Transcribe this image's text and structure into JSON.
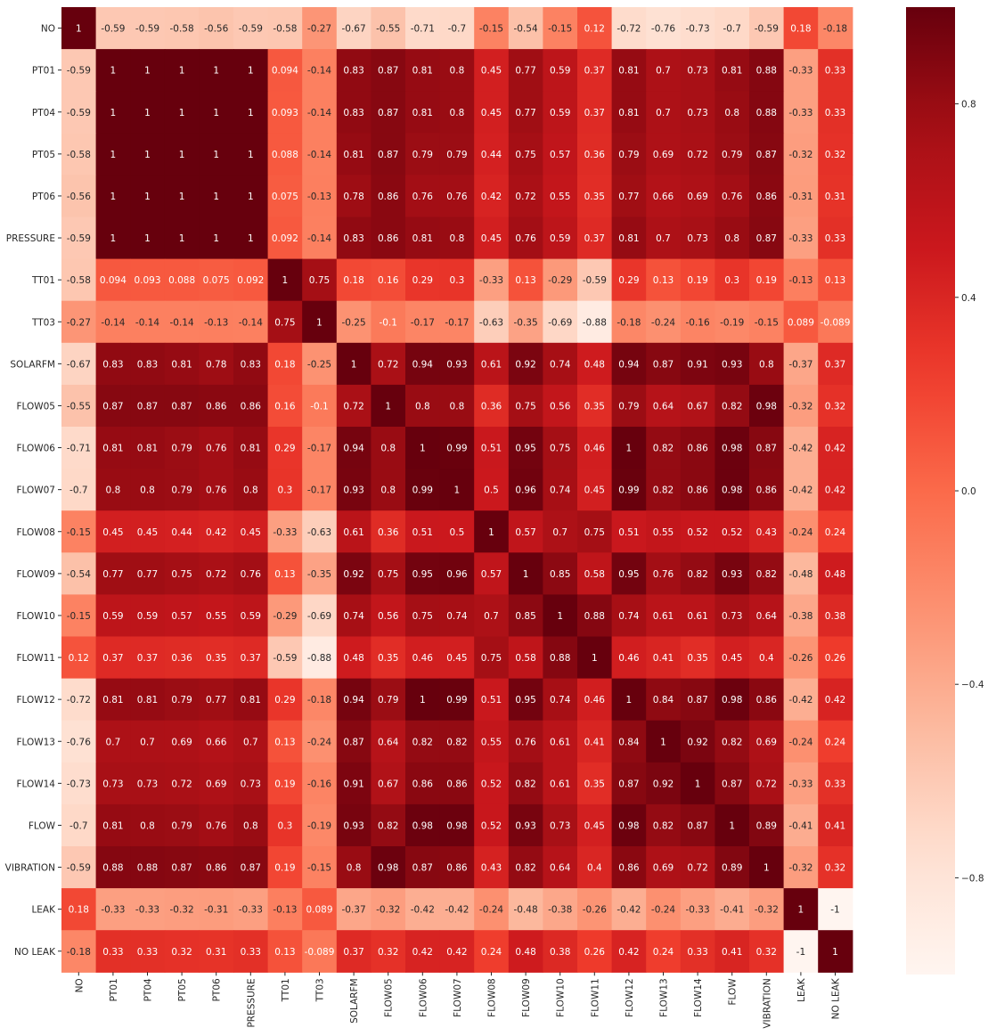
{
  "chart_data": {
    "type": "heatmap",
    "colormap": "Reds",
    "colors": {
      "low": "#fff5f0",
      "mid": "#f6553c",
      "high": "#67000d"
    },
    "vmin": -1,
    "vmax": 1,
    "labels": [
      "NO",
      "PT01",
      "PT04",
      "PT05",
      "PT06",
      "PRESSURE",
      "TT01",
      "TT03",
      "SOLARFM",
      "FLOW05",
      "FLOW06",
      "FLOW07",
      "FLOW08",
      "FLOW09",
      "FLOW10",
      "FLOW11",
      "FLOW12",
      "FLOW13",
      "FLOW14",
      "FLOW",
      "VIBRATION",
      "LEAK",
      "NO LEAK"
    ],
    "colorbar_ticks": [
      "0.8",
      "0.4",
      "0.0",
      "−0.4",
      "−0.8"
    ],
    "colorbar_tick_values": [
      0.8,
      0.4,
      0.0,
      -0.4,
      -0.8
    ],
    "matrix": [
      [
        "1",
        "-0.59",
        "-0.59",
        "-0.58",
        "-0.56",
        "-0.59",
        "-0.58",
        "-0.27",
        "-0.67",
        "-0.55",
        "-0.71",
        "-0.7",
        "-0.15",
        "-0.54",
        "-0.15",
        "0.12",
        "-0.72",
        "-0.76",
        "-0.73",
        "-0.7",
        "-0.59",
        "0.18",
        "-0.18"
      ],
      [
        "-0.59",
        "1",
        "1",
        "1",
        "1",
        "1",
        "0.094",
        "-0.14",
        "0.83",
        "0.87",
        "0.81",
        "0.8",
        "0.45",
        "0.77",
        "0.59",
        "0.37",
        "0.81",
        "0.7",
        "0.73",
        "0.81",
        "0.88",
        "-0.33",
        "0.33"
      ],
      [
        "-0.59",
        "1",
        "1",
        "1",
        "1",
        "1",
        "0.093",
        "-0.14",
        "0.83",
        "0.87",
        "0.81",
        "0.8",
        "0.45",
        "0.77",
        "0.59",
        "0.37",
        "0.81",
        "0.7",
        "0.73",
        "0.8",
        "0.88",
        "-0.33",
        "0.33"
      ],
      [
        "-0.58",
        "1",
        "1",
        "1",
        "1",
        "1",
        "0.088",
        "-0.14",
        "0.81",
        "0.87",
        "0.79",
        "0.79",
        "0.44",
        "0.75",
        "0.57",
        "0.36",
        "0.79",
        "0.69",
        "0.72",
        "0.79",
        "0.87",
        "-0.32",
        "0.32"
      ],
      [
        "-0.56",
        "1",
        "1",
        "1",
        "1",
        "1",
        "0.075",
        "-0.13",
        "0.78",
        "0.86",
        "0.76",
        "0.76",
        "0.42",
        "0.72",
        "0.55",
        "0.35",
        "0.77",
        "0.66",
        "0.69",
        "0.76",
        "0.86",
        "-0.31",
        "0.31"
      ],
      [
        "-0.59",
        "1",
        "1",
        "1",
        "1",
        "1",
        "0.092",
        "-0.14",
        "0.83",
        "0.86",
        "0.81",
        "0.8",
        "0.45",
        "0.76",
        "0.59",
        "0.37",
        "0.81",
        "0.7",
        "0.73",
        "0.8",
        "0.87",
        "-0.33",
        "0.33"
      ],
      [
        "-0.58",
        "0.094",
        "0.093",
        "0.088",
        "0.075",
        "0.092",
        "1",
        "0.75",
        "0.18",
        "0.16",
        "0.29",
        "0.3",
        "-0.33",
        "0.13",
        "-0.29",
        "-0.59",
        "0.29",
        "0.13",
        "0.19",
        "0.3",
        "0.19",
        "-0.13",
        "0.13"
      ],
      [
        "-0.27",
        "-0.14",
        "-0.14",
        "-0.14",
        "-0.13",
        "-0.14",
        "0.75",
        "1",
        "-0.25",
        "-0.1",
        "-0.17",
        "-0.17",
        "-0.63",
        "-0.35",
        "-0.69",
        "-0.88",
        "-0.18",
        "-0.24",
        "-0.16",
        "-0.19",
        "-0.15",
        "0.089",
        "-0.089"
      ],
      [
        "-0.67",
        "0.83",
        "0.83",
        "0.81",
        "0.78",
        "0.83",
        "0.18",
        "-0.25",
        "1",
        "0.72",
        "0.94",
        "0.93",
        "0.61",
        "0.92",
        "0.74",
        "0.48",
        "0.94",
        "0.87",
        "0.91",
        "0.93",
        "0.8",
        "-0.37",
        "0.37"
      ],
      [
        "-0.55",
        "0.87",
        "0.87",
        "0.87",
        "0.86",
        "0.86",
        "0.16",
        "-0.1",
        "0.72",
        "1",
        "0.8",
        "0.8",
        "0.36",
        "0.75",
        "0.56",
        "0.35",
        "0.79",
        "0.64",
        "0.67",
        "0.82",
        "0.98",
        "-0.32",
        "0.32"
      ],
      [
        "-0.71",
        "0.81",
        "0.81",
        "0.79",
        "0.76",
        "0.81",
        "0.29",
        "-0.17",
        "0.94",
        "0.8",
        "1",
        "0.99",
        "0.51",
        "0.95",
        "0.75",
        "0.46",
        "1",
        "0.82",
        "0.86",
        "0.98",
        "0.87",
        "-0.42",
        "0.42"
      ],
      [
        "-0.7",
        "0.8",
        "0.8",
        "0.79",
        "0.76",
        "0.8",
        "0.3",
        "-0.17",
        "0.93",
        "0.8",
        "0.99",
        "1",
        "0.5",
        "0.96",
        "0.74",
        "0.45",
        "0.99",
        "0.82",
        "0.86",
        "0.98",
        "0.86",
        "-0.42",
        "0.42"
      ],
      [
        "-0.15",
        "0.45",
        "0.45",
        "0.44",
        "0.42",
        "0.45",
        "-0.33",
        "-0.63",
        "0.61",
        "0.36",
        "0.51",
        "0.5",
        "1",
        "0.57",
        "0.7",
        "0.75",
        "0.51",
        "0.55",
        "0.52",
        "0.52",
        "0.43",
        "-0.24",
        "0.24"
      ],
      [
        "-0.54",
        "0.77",
        "0.77",
        "0.75",
        "0.72",
        "0.76",
        "0.13",
        "-0.35",
        "0.92",
        "0.75",
        "0.95",
        "0.96",
        "0.57",
        "1",
        "0.85",
        "0.58",
        "0.95",
        "0.76",
        "0.82",
        "0.93",
        "0.82",
        "-0.48",
        "0.48"
      ],
      [
        "-0.15",
        "0.59",
        "0.59",
        "0.57",
        "0.55",
        "0.59",
        "-0.29",
        "-0.69",
        "0.74",
        "0.56",
        "0.75",
        "0.74",
        "0.7",
        "0.85",
        "1",
        "0.88",
        "0.74",
        "0.61",
        "0.61",
        "0.73",
        "0.64",
        "-0.38",
        "0.38"
      ],
      [
        "0.12",
        "0.37",
        "0.37",
        "0.36",
        "0.35",
        "0.37",
        "-0.59",
        "-0.88",
        "0.48",
        "0.35",
        "0.46",
        "0.45",
        "0.75",
        "0.58",
        "0.88",
        "1",
        "0.46",
        "0.41",
        "0.35",
        "0.45",
        "0.4",
        "-0.26",
        "0.26"
      ],
      [
        "-0.72",
        "0.81",
        "0.81",
        "0.79",
        "0.77",
        "0.81",
        "0.29",
        "-0.18",
        "0.94",
        "0.79",
        "1",
        "0.99",
        "0.51",
        "0.95",
        "0.74",
        "0.46",
        "1",
        "0.84",
        "0.87",
        "0.98",
        "0.86",
        "-0.42",
        "0.42"
      ],
      [
        "-0.76",
        "0.7",
        "0.7",
        "0.69",
        "0.66",
        "0.7",
        "0.13",
        "-0.24",
        "0.87",
        "0.64",
        "0.82",
        "0.82",
        "0.55",
        "0.76",
        "0.61",
        "0.41",
        "0.84",
        "1",
        "0.92",
        "0.82",
        "0.69",
        "-0.24",
        "0.24"
      ],
      [
        "-0.73",
        "0.73",
        "0.73",
        "0.72",
        "0.69",
        "0.73",
        "0.19",
        "-0.16",
        "0.91",
        "0.67",
        "0.86",
        "0.86",
        "0.52",
        "0.82",
        "0.61",
        "0.35",
        "0.87",
        "0.92",
        "1",
        "0.87",
        "0.72",
        "-0.33",
        "0.33"
      ],
      [
        "-0.7",
        "0.81",
        "0.8",
        "0.79",
        "0.76",
        "0.8",
        "0.3",
        "-0.19",
        "0.93",
        "0.82",
        "0.98",
        "0.98",
        "0.52",
        "0.93",
        "0.73",
        "0.45",
        "0.98",
        "0.82",
        "0.87",
        "1",
        "0.89",
        "-0.41",
        "0.41"
      ],
      [
        "-0.59",
        "0.88",
        "0.88",
        "0.87",
        "0.86",
        "0.87",
        "0.19",
        "-0.15",
        "0.8",
        "0.98",
        "0.87",
        "0.86",
        "0.43",
        "0.82",
        "0.64",
        "0.4",
        "0.86",
        "0.69",
        "0.72",
        "0.89",
        "1",
        "-0.32",
        "0.32"
      ],
      [
        "0.18",
        "-0.33",
        "-0.33",
        "-0.32",
        "-0.31",
        "-0.33",
        "-0.13",
        "0.089",
        "-0.37",
        "-0.32",
        "-0.42",
        "-0.42",
        "-0.24",
        "-0.48",
        "-0.38",
        "-0.26",
        "-0.42",
        "-0.24",
        "-0.33",
        "-0.41",
        "-0.32",
        "1",
        "-1"
      ],
      [
        "-0.18",
        "0.33",
        "0.33",
        "0.32",
        "0.31",
        "0.33",
        "0.13",
        "-0.089",
        "0.37",
        "0.32",
        "0.42",
        "0.42",
        "0.24",
        "0.48",
        "0.38",
        "0.26",
        "0.42",
        "0.24",
        "0.33",
        "0.41",
        "0.32",
        "-1",
        "1"
      ]
    ]
  }
}
